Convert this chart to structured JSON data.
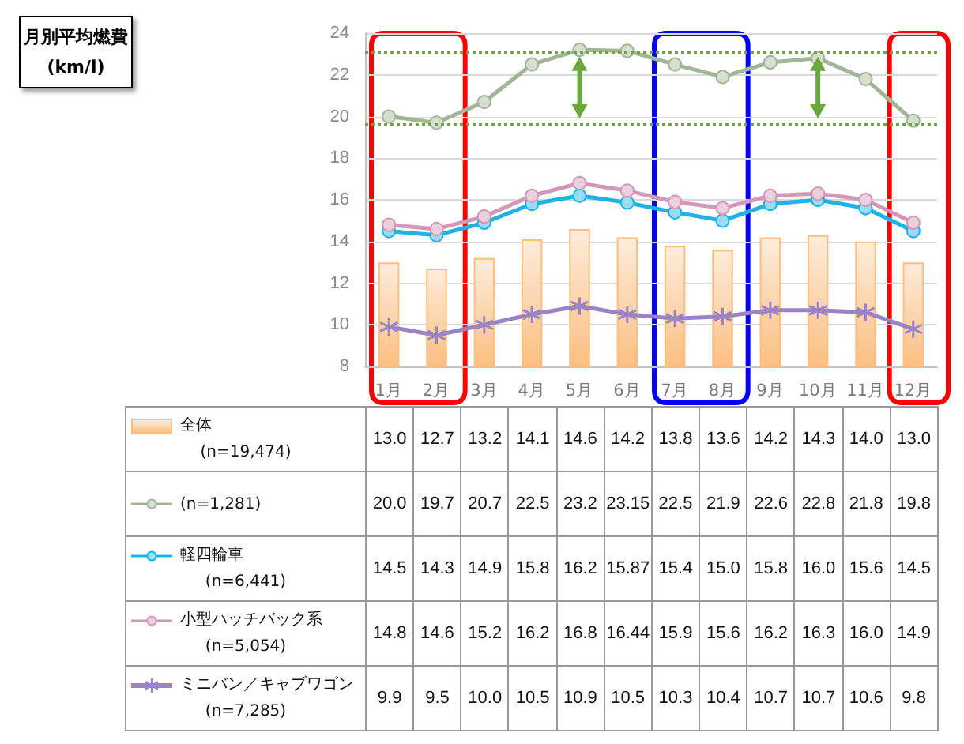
{
  "chart_data": {
    "type": "line",
    "title": "月別平均燃費",
    "subtitle": "(km/l)",
    "categories": [
      "1月",
      "2月",
      "3月",
      "4月",
      "5月",
      "6月",
      "7月",
      "8月",
      "9月",
      "10月",
      "11月",
      "12月"
    ],
    "series": [
      {
        "name": "全体\n(n=19,474)",
        "type": "bar",
        "color": "#fbbf82",
        "values": [
          13.0,
          12.7,
          13.2,
          14.1,
          14.6,
          14.2,
          13.8,
          13.6,
          14.2,
          14.3,
          14.0,
          13.0
        ],
        "value_labels": [
          "13.0",
          "12.7",
          "13.2",
          "14.1",
          "14.6",
          "14.2",
          "13.8",
          "13.6",
          "14.2",
          "14.3",
          "14.0",
          "13.0"
        ]
      },
      {
        "name": "(n=1,281)",
        "color": "#a3b597",
        "marker": "circle",
        "values": [
          20.0,
          19.7,
          20.7,
          22.5,
          23.2,
          23.15,
          22.5,
          21.9,
          22.6,
          22.8,
          21.8,
          19.8
        ],
        "value_labels": [
          "20.0",
          "19.7",
          "20.7",
          "22.5",
          "23.2",
          "23.15",
          "22.5",
          "21.9",
          "22.6",
          "22.8",
          "21.8",
          "19.8"
        ]
      },
      {
        "name": "軽四輪車\n(n=6,441)",
        "color": "#1eb2e6",
        "marker": "circle",
        "values": [
          14.5,
          14.3,
          14.9,
          15.8,
          16.2,
          15.87,
          15.4,
          15.0,
          15.8,
          16.0,
          15.6,
          14.5
        ],
        "value_labels": [
          "14.5",
          "14.3",
          "14.9",
          "15.8",
          "16.2",
          "15.87",
          "15.4",
          "15.0",
          "15.8",
          "16.0",
          "15.6",
          "14.5"
        ]
      },
      {
        "name": "小型ハッチバック系\n(n=5,054)",
        "color": "#d497b7",
        "marker": "circle",
        "values": [
          14.8,
          14.6,
          15.2,
          16.2,
          16.8,
          16.44,
          15.9,
          15.6,
          16.2,
          16.3,
          16.0,
          14.9
        ],
        "value_labels": [
          "14.8",
          "14.6",
          "15.2",
          "16.2",
          "16.8",
          "16.44",
          "15.9",
          "15.6",
          "16.2",
          "16.3",
          "16.0",
          "14.9"
        ]
      },
      {
        "name": "ミニバン／キャブワゴン\n(n=7,285)",
        "color": "#9a84c6",
        "marker": "cross",
        "values": [
          9.9,
          9.5,
          10.0,
          10.5,
          10.9,
          10.5,
          10.3,
          10.4,
          10.7,
          10.7,
          10.6,
          9.8
        ],
        "value_labels": [
          "9.9",
          "9.5",
          "10.0",
          "10.5",
          "10.9",
          "10.5",
          "10.3",
          "10.4",
          "10.7",
          "10.7",
          "10.6",
          "9.8"
        ]
      }
    ],
    "ylim": [
      8,
      24
    ],
    "yticks": [
      8,
      10,
      12,
      14,
      16,
      18,
      20,
      22,
      24
    ],
    "grid": "y",
    "legend": "bottom",
    "ref_lines": [
      {
        "axis": "y",
        "value": 23.1,
        "color": "#6aa83e",
        "line_style": "dotted"
      },
      {
        "axis": "y",
        "value": 19.6,
        "color": "#6aa83e",
        "line_style": "dotted"
      }
    ]
  }
}
